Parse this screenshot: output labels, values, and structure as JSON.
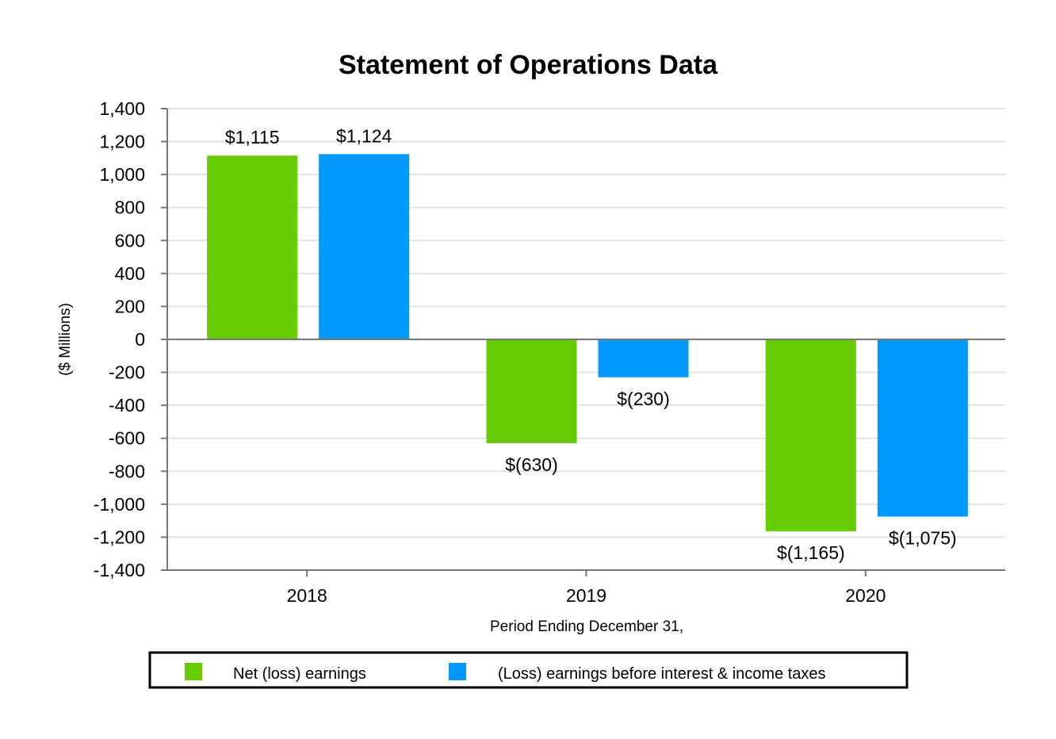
{
  "chart_data": {
    "type": "bar",
    "title": "Statement of Operations Data",
    "xlabel": "Period Ending December 31,",
    "ylabel": "($ Millions)",
    "categories": [
      "2018",
      "2019",
      "2020"
    ],
    "series": [
      {
        "name": "Net (loss) earnings",
        "color": "#66cc00",
        "values": [
          1115,
          -630,
          -1165
        ],
        "labels": [
          "$1,115",
          "$(630)",
          "$(1,165)"
        ]
      },
      {
        "name": "(Loss) earnings before interest & income taxes",
        "color": "#0099ff",
        "values": [
          1124,
          -230,
          -1075
        ],
        "labels": [
          "$1,124",
          "$(230)",
          "$(1,075)"
        ]
      }
    ],
    "ylim": [
      -1400,
      1400
    ],
    "yticks": [
      1400,
      1200,
      1000,
      800,
      600,
      400,
      200,
      0,
      -200,
      -400,
      -600,
      -800,
      -1000,
      -1200,
      -1400
    ],
    "ytick_labels": [
      "1,400",
      "1,200",
      "1,000",
      "800",
      "600",
      "400",
      "200",
      "0",
      "-200",
      "-400",
      "-600",
      "-800",
      "-1,000",
      "-1,200",
      "-1,400"
    ],
    "grid": true,
    "legend_position": "bottom"
  }
}
